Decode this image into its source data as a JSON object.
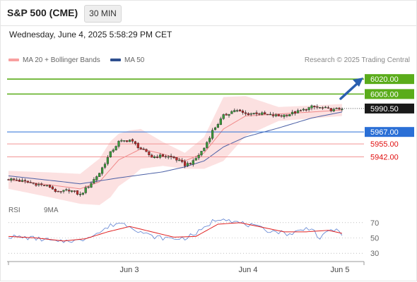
{
  "header": {
    "title": "S&P 500 (CME)",
    "timeframe": "30 MIN",
    "datetime": "Wednesday, June 4, 2025 5:58:29 PM CET"
  },
  "legend": {
    "bb_label": "MA 20 + Bollinger Bands",
    "ma50_label": "MA 50",
    "credit": "Research © 2025 Trading Central",
    "rsi_label": "RSI",
    "rsi_ma_label": "9MA"
  },
  "colors": {
    "bb_band": "#fcdcdc",
    "bb_line": "#f08a8a",
    "ma50": "#4a5fa5",
    "target": "#5aac1a",
    "pivot": "#2a6fd6",
    "support": "#f29595",
    "support_text": "#e01010",
    "arrow": "#2a5fb0",
    "rsi": "#5b7fd0",
    "rsi_ma": "#e02020"
  },
  "chart_data": [
    {
      "type": "line",
      "title": "S&P 500 (CME)",
      "ylim": [
        5900,
        6030
      ],
      "x_ticks": [
        "Jun 3",
        "Jun 4",
        "Jun 5"
      ],
      "levels": [
        {
          "value": 6020.0,
          "label": "6020.00",
          "kind": "target"
        },
        {
          "value": 6005.0,
          "label": "6005.00",
          "kind": "target"
        },
        {
          "value": 5990.5,
          "label": "5990.50",
          "kind": "last"
        },
        {
          "value": 5967.0,
          "label": "5967.00",
          "kind": "pivot"
        },
        {
          "value": 5955.0,
          "label": "5955.00",
          "kind": "support"
        },
        {
          "value": 5942.0,
          "label": "5942.00",
          "kind": "support"
        }
      ],
      "candle_anchors": [
        [
          0,
          5920
        ],
        [
          8,
          5916
        ],
        [
          15,
          5912
        ],
        [
          18,
          5906
        ],
        [
          22,
          5909
        ],
        [
          26,
          5904
        ],
        [
          30,
          5916
        ],
        [
          33,
          5926
        ],
        [
          37,
          5946
        ],
        [
          40,
          5957
        ],
        [
          44,
          5959
        ],
        [
          48,
          5950
        ],
        [
          52,
          5942
        ],
        [
          56,
          5943
        ],
        [
          60,
          5941
        ],
        [
          64,
          5934
        ],
        [
          67,
          5937
        ],
        [
          71,
          5951
        ],
        [
          74,
          5968
        ],
        [
          78,
          5983
        ],
        [
          82,
          5989
        ],
        [
          86,
          5985
        ],
        [
          90,
          5986
        ],
        [
          94,
          5984
        ],
        [
          98,
          5983
        ],
        [
          102,
          5985
        ],
        [
          106,
          5988
        ],
        [
          110,
          5992
        ],
        [
          114,
          5991
        ],
        [
          118,
          5989
        ],
        [
          121,
          5991
        ]
      ],
      "ma20_anchors": [
        [
          0,
          5919
        ],
        [
          15,
          5914
        ],
        [
          26,
          5910
        ],
        [
          33,
          5917
        ],
        [
          40,
          5939
        ],
        [
          48,
          5950
        ],
        [
          56,
          5945
        ],
        [
          64,
          5938
        ],
        [
          71,
          5946
        ],
        [
          78,
          5970
        ],
        [
          86,
          5983
        ],
        [
          98,
          5985
        ],
        [
          110,
          5987
        ],
        [
          121,
          5989
        ]
      ],
      "bb_width_anchors": [
        [
          0,
          9
        ],
        [
          26,
          15
        ],
        [
          37,
          28
        ],
        [
          44,
          24
        ],
        [
          56,
          12
        ],
        [
          64,
          8
        ],
        [
          71,
          16
        ],
        [
          78,
          32
        ],
        [
          86,
          20
        ],
        [
          98,
          7
        ],
        [
          121,
          6
        ]
      ],
      "ma50_anchors": [
        [
          0,
          5923
        ],
        [
          20,
          5917
        ],
        [
          26,
          5915
        ],
        [
          40,
          5921
        ],
        [
          56,
          5927
        ],
        [
          64,
          5932
        ],
        [
          71,
          5938
        ],
        [
          78,
          5952
        ],
        [
          86,
          5962
        ],
        [
          98,
          5971
        ],
        [
          110,
          5981
        ],
        [
          121,
          5987
        ]
      ]
    },
    {
      "type": "line",
      "title": "RSI",
      "ylim": [
        20,
        80
      ],
      "y_ticks": [
        70,
        50,
        30
      ],
      "rsi_anchors": [
        [
          0,
          52
        ],
        [
          8,
          50
        ],
        [
          15,
          47
        ],
        [
          18,
          44
        ],
        [
          22,
          47
        ],
        [
          26,
          46
        ],
        [
          30,
          54
        ],
        [
          33,
          57
        ],
        [
          37,
          66
        ],
        [
          40,
          70
        ],
        [
          44,
          66
        ],
        [
          48,
          58
        ],
        [
          52,
          52
        ],
        [
          56,
          50
        ],
        [
          60,
          49
        ],
        [
          64,
          50
        ],
        [
          67,
          54
        ],
        [
          71,
          62
        ],
        [
          74,
          72
        ],
        [
          78,
          77
        ],
        [
          82,
          71
        ],
        [
          86,
          68
        ],
        [
          90,
          64
        ],
        [
          94,
          60
        ],
        [
          98,
          58
        ],
        [
          102,
          55
        ],
        [
          106,
          60
        ],
        [
          110,
          64
        ],
        [
          113,
          48
        ],
        [
          117,
          62
        ],
        [
          121,
          56
        ]
      ],
      "rsi_ma_anchors": [
        [
          0,
          52
        ],
        [
          10,
          50
        ],
        [
          20,
          46
        ],
        [
          28,
          49
        ],
        [
          36,
          58
        ],
        [
          44,
          65
        ],
        [
          52,
          58
        ],
        [
          60,
          51
        ],
        [
          68,
          52
        ],
        [
          76,
          68
        ],
        [
          84,
          70
        ],
        [
          92,
          64
        ],
        [
          100,
          58
        ],
        [
          108,
          58
        ],
        [
          116,
          60
        ],
        [
          121,
          56
        ]
      ]
    }
  ]
}
